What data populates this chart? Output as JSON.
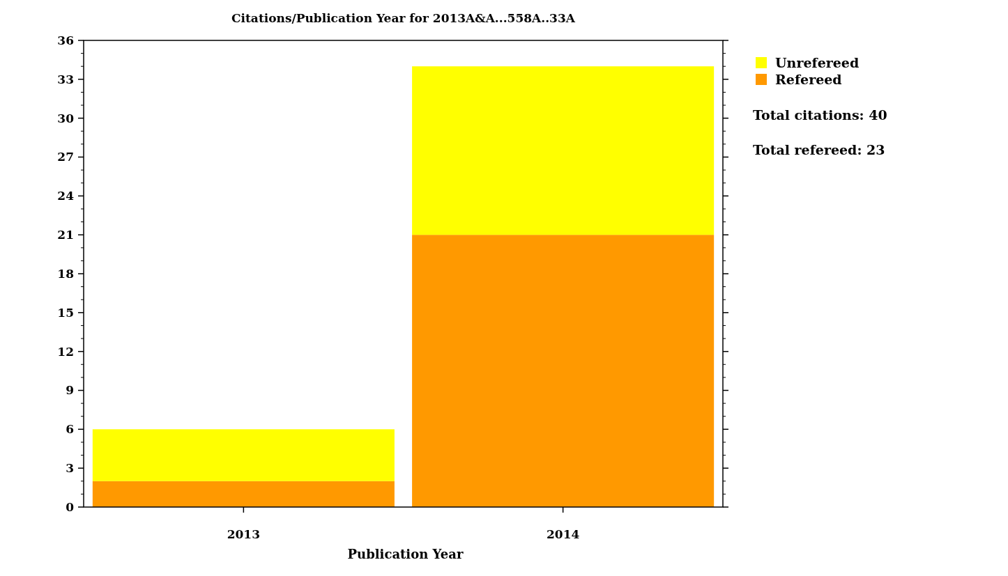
{
  "chart_data": {
    "type": "bar",
    "title": "Citations/Publication Year for 2013A&A...558A..33A",
    "xlabel": "Publication Year",
    "categories": [
      "2013",
      "2014"
    ],
    "series": [
      {
        "name": "Refereed",
        "color": "#ff9900",
        "values": [
          2,
          21
        ]
      },
      {
        "name": "Unrefereed",
        "color": "#ffff00",
        "values": [
          4,
          13
        ]
      }
    ],
    "stacked": true,
    "ylim": [
      0,
      36
    ],
    "yticks": [
      0,
      3,
      6,
      9,
      12,
      15,
      18,
      21,
      24,
      27,
      30,
      33,
      36
    ],
    "legend": "top right",
    "grid": false,
    "annotations": [
      "Total citations: 40",
      "Total refereed: 23"
    ]
  }
}
